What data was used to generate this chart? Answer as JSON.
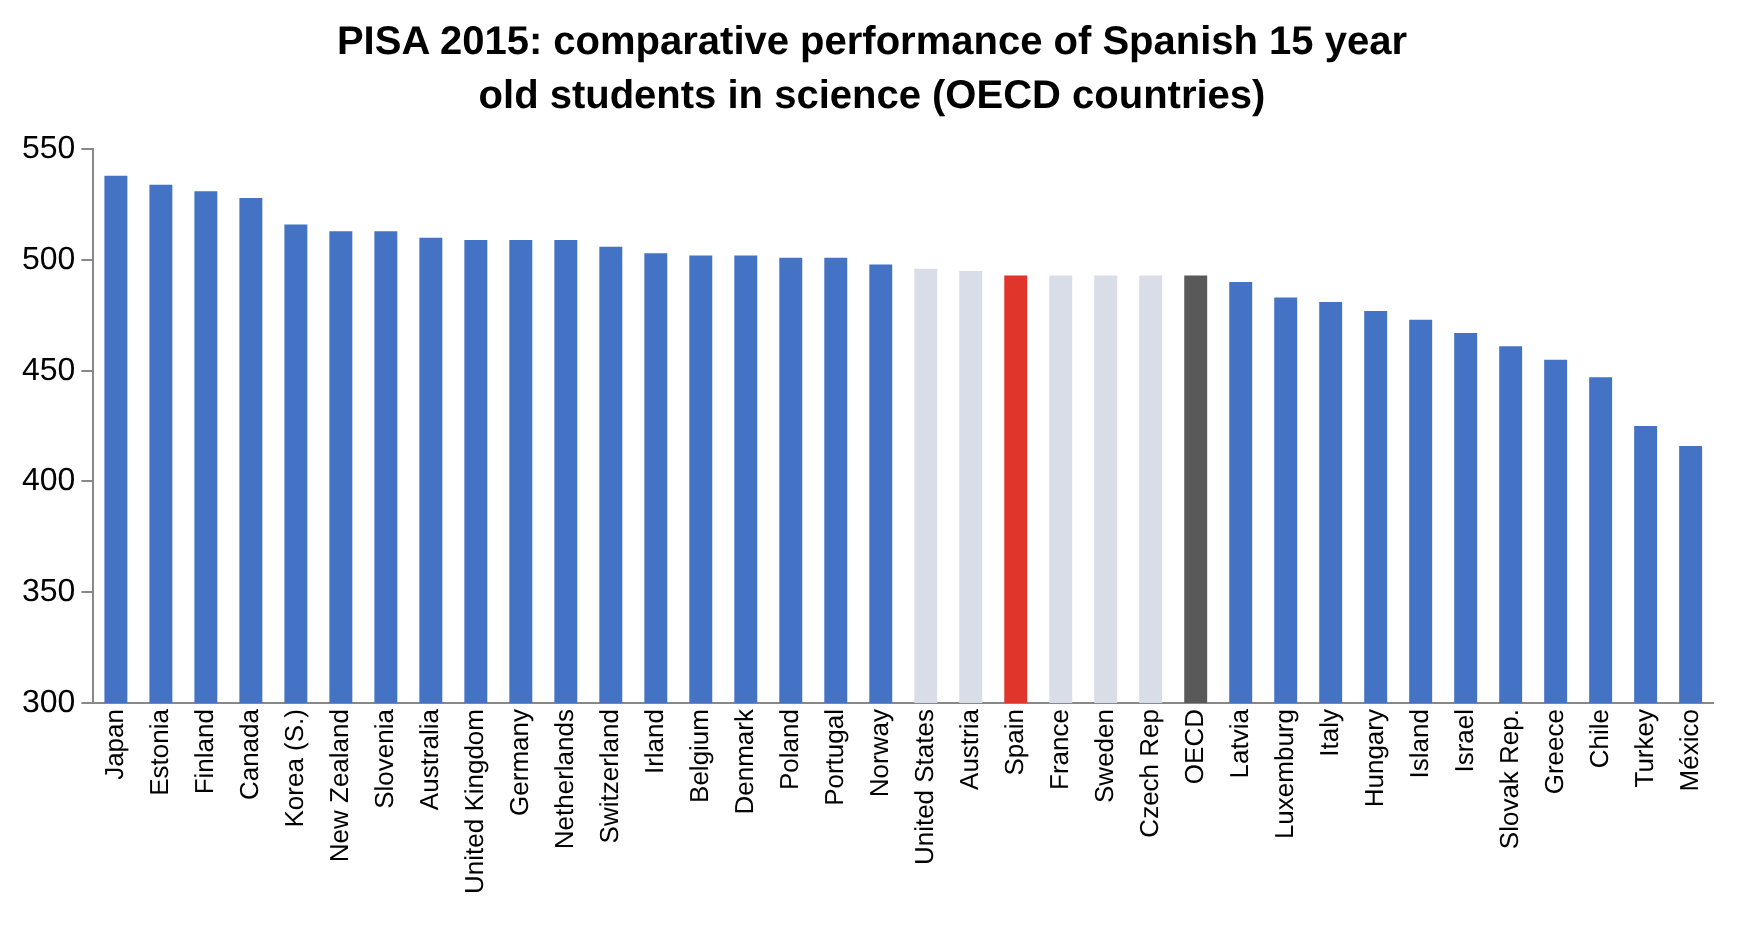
{
  "chart_data": {
    "type": "bar",
    "title": "PISA 2015: comparative performance of Spanish 15 year old students in science (OECD countries)",
    "categories": [
      "Japan",
      "Estonia",
      "Finland",
      "Canada",
      "Korea (S.)",
      "New Zealand",
      "Slovenia",
      "Australia",
      "United Kingdom",
      "Germany",
      "Netherlands",
      "Switzerland",
      "Irland",
      "Belgium",
      "Denmark",
      "Poland",
      "Portugal",
      "Norway",
      "United States",
      "Austria",
      "Spain",
      "France",
      "Sweden",
      "Czech Rep",
      "OECD",
      "Latvia",
      "Luxemburg",
      "Italy",
      "Hungary",
      "Island",
      "Israel",
      "Slovak Rep.",
      "Greece",
      "Chile",
      "Turkey",
      "México"
    ],
    "values": [
      538,
      534,
      531,
      528,
      516,
      513,
      513,
      510,
      509,
      509,
      509,
      506,
      503,
      502,
      502,
      501,
      501,
      498,
      496,
      495,
      493,
      493,
      493,
      493,
      493,
      490,
      483,
      481,
      477,
      473,
      467,
      461,
      455,
      447,
      425,
      416
    ],
    "colors": [
      "#4472c4",
      "#4472c4",
      "#4472c4",
      "#4472c4",
      "#4472c4",
      "#4472c4",
      "#4472c4",
      "#4472c4",
      "#4472c4",
      "#4472c4",
      "#4472c4",
      "#4472c4",
      "#4472c4",
      "#4472c4",
      "#4472c4",
      "#4472c4",
      "#4472c4",
      "#4472c4",
      "#d9dde8",
      "#d9dde8",
      "#e0352b",
      "#d9dde8",
      "#d9dde8",
      "#d9dde8",
      "#595959",
      "#4472c4",
      "#4472c4",
      "#4472c4",
      "#4472c4",
      "#4472c4",
      "#4472c4",
      "#4472c4",
      "#4472c4",
      "#4472c4",
      "#4472c4",
      "#4472c4"
    ],
    "ylim": [
      300,
      550
    ],
    "yticks": [
      300,
      350,
      400,
      450,
      500,
      550
    ],
    "grid": false,
    "legend": false
  }
}
